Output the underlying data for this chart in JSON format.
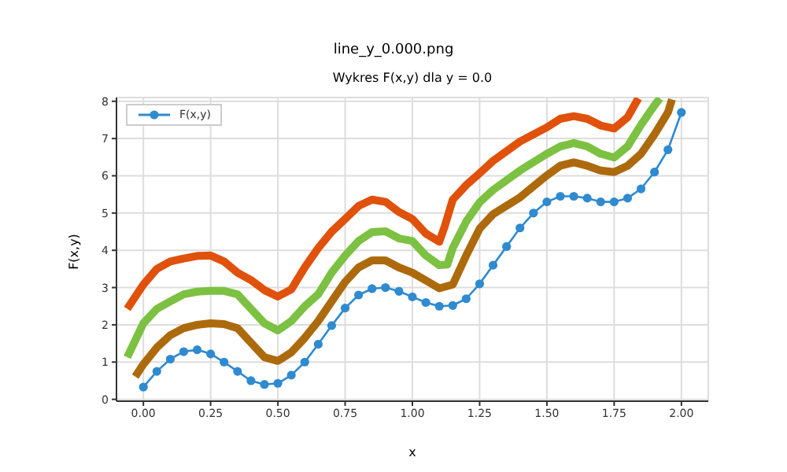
{
  "chart_data": {
    "type": "line",
    "title": "line_y_0.000.png",
    "subtitle": "Wykres F(x,y) dla y = 0.0",
    "xlabel": "x",
    "ylabel": "F(x,y)",
    "xlim": [
      -0.1,
      2.1
    ],
    "ylim": [
      -0.05,
      8.1
    ],
    "xticks": [
      {
        "value": 0,
        "label": "0.00"
      },
      {
        "value": 0.25,
        "label": "0.25"
      },
      {
        "value": 0.5,
        "label": "0.50"
      },
      {
        "value": 0.75,
        "label": "0.75"
      },
      {
        "value": 1,
        "label": "1.00"
      },
      {
        "value": 1.25,
        "label": "1.25"
      },
      {
        "value": 1.5,
        "label": "1.50"
      },
      {
        "value": 1.75,
        "label": "1.75"
      },
      {
        "value": 2,
        "label": "2.00"
      }
    ],
    "yticks": [
      0,
      1,
      2,
      3,
      4,
      5,
      6,
      7,
      8
    ],
    "grid": true,
    "legend": "top left",
    "series": [
      {
        "name": "F(x,y)",
        "color": "#2f8ad0",
        "marker": "circle",
        "x": [
          0,
          0.05,
          0.1,
          0.15,
          0.2,
          0.25,
          0.3,
          0.35,
          0.4,
          0.45,
          0.5,
          0.55,
          0.6,
          0.65,
          0.7,
          0.75,
          0.8,
          0.85,
          0.9,
          0.95,
          1,
          1.05,
          1.1,
          1.15,
          1.2,
          1.25,
          1.3,
          1.35,
          1.4,
          1.45,
          1.5,
          1.55,
          1.6,
          1.65,
          1.7,
          1.75,
          1.8,
          1.85,
          1.9,
          1.95,
          2
        ],
        "values": [
          0.33,
          0.75,
          1.08,
          1.28,
          1.33,
          1.22,
          1.0,
          0.75,
          0.5,
          0.4,
          0.43,
          0.65,
          1.0,
          1.48,
          1.98,
          2.45,
          2.8,
          2.97,
          3.0,
          2.9,
          2.75,
          2.6,
          2.5,
          2.52,
          2.7,
          3.1,
          3.6,
          4.1,
          4.6,
          5.0,
          5.3,
          5.45,
          5.45,
          5.4,
          5.3,
          5.3,
          5.4,
          5.65,
          6.1,
          6.7,
          7.7
        ]
      },
      {
        "color": "#e0510b",
        "marker": "none",
        "x": [
          -0.06,
          0,
          0.05,
          0.1,
          0.15,
          0.2,
          0.25,
          0.3,
          0.35,
          0.4,
          0.45,
          0.5,
          0.55,
          0.6,
          0.65,
          0.7,
          0.75,
          0.8,
          0.85,
          0.9,
          0.95,
          1,
          1.05,
          1.1,
          1.12,
          1.15,
          1.2,
          1.25,
          1.3,
          1.4,
          1.5,
          1.55,
          1.6,
          1.65,
          1.7,
          1.75,
          1.8,
          1.84
        ],
        "values": [
          2.43,
          3.08,
          3.5,
          3.7,
          3.78,
          3.85,
          3.86,
          3.7,
          3.4,
          3.2,
          2.93,
          2.76,
          2.95,
          3.54,
          4.06,
          4.5,
          4.84,
          5.19,
          5.36,
          5.3,
          5.03,
          4.84,
          4.45,
          4.23,
          4.64,
          5.36,
          5.75,
          6.07,
          6.4,
          6.92,
          7.3,
          7.53,
          7.6,
          7.53,
          7.35,
          7.27,
          7.57,
          8.08
        ]
      },
      {
        "color": "#7cc142",
        "marker": "none",
        "x": [
          -0.06,
          0,
          0.05,
          0.1,
          0.15,
          0.2,
          0.25,
          0.3,
          0.35,
          0.4,
          0.45,
          0.5,
          0.55,
          0.6,
          0.65,
          0.7,
          0.75,
          0.8,
          0.85,
          0.9,
          0.95,
          1,
          1.05,
          1.1,
          1.13,
          1.15,
          1.2,
          1.25,
          1.3,
          1.4,
          1.5,
          1.55,
          1.6,
          1.65,
          1.7,
          1.75,
          1.8,
          1.85,
          1.9,
          1.92
        ],
        "values": [
          1.13,
          2.04,
          2.43,
          2.63,
          2.82,
          2.89,
          2.91,
          2.91,
          2.82,
          2.43,
          2.04,
          1.85,
          2.1,
          2.5,
          2.82,
          3.4,
          3.86,
          4.25,
          4.49,
          4.51,
          4.32,
          4.25,
          3.86,
          3.6,
          3.62,
          4.06,
          4.77,
          5.29,
          5.62,
          6.14,
          6.59,
          6.79,
          6.88,
          6.79,
          6.59,
          6.49,
          6.79,
          7.37,
          7.89,
          8.08
        ]
      },
      {
        "color": "#ad6a0c",
        "marker": "none",
        "x": [
          -0.03,
          0,
          0.05,
          0.1,
          0.15,
          0.2,
          0.25,
          0.3,
          0.35,
          0.4,
          0.45,
          0.5,
          0.55,
          0.6,
          0.65,
          0.7,
          0.75,
          0.8,
          0.85,
          0.9,
          0.95,
          1,
          1.05,
          1.1,
          1.15,
          1.2,
          1.25,
          1.3,
          1.4,
          1.5,
          1.55,
          1.6,
          1.65,
          1.7,
          1.75,
          1.8,
          1.85,
          1.9,
          1.95,
          1.965
        ],
        "values": [
          0.61,
          0.94,
          1.39,
          1.72,
          1.91,
          2.0,
          2.04,
          2.02,
          1.91,
          1.52,
          1.13,
          1.03,
          1.26,
          1.65,
          2.1,
          2.63,
          3.15,
          3.54,
          3.73,
          3.73,
          3.54,
          3.4,
          3.19,
          2.98,
          3.08,
          3.86,
          4.58,
          4.97,
          5.42,
          6.01,
          6.27,
          6.36,
          6.27,
          6.14,
          6.1,
          6.27,
          6.59,
          7.11,
          7.7,
          8.05
        ]
      }
    ]
  }
}
